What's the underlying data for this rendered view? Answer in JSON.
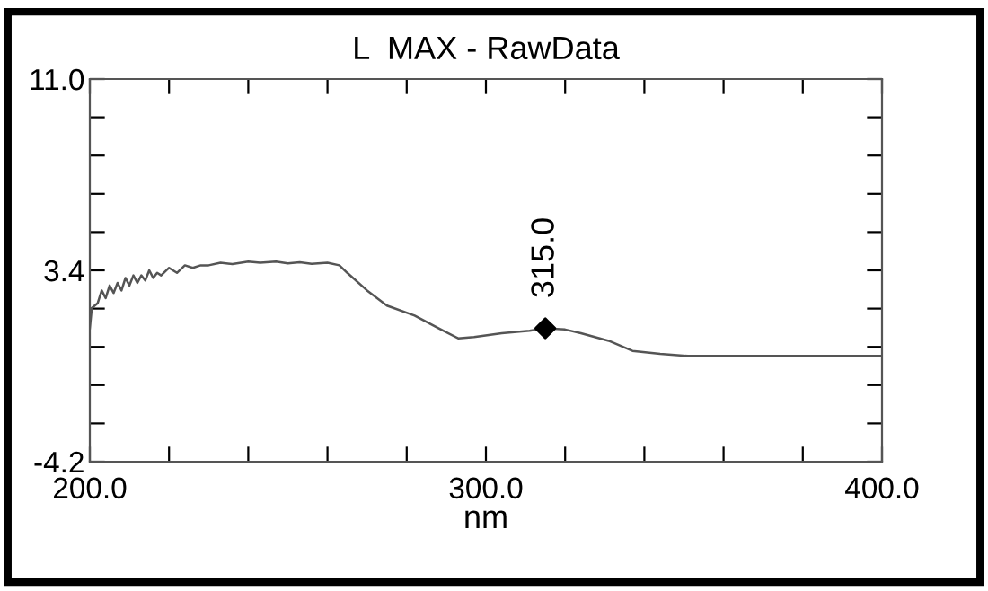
{
  "chart_data": {
    "type": "line",
    "title": "L  MAX - RawData",
    "xlabel": "nm",
    "series": [
      {
        "color": "#555555",
        "marker": "none",
        "x": [
          200,
          200.5,
          202,
          203,
          204,
          205,
          206,
          207,
          208,
          209,
          210,
          211,
          212,
          213,
          214,
          215,
          216,
          217,
          218,
          220,
          222,
          224,
          226,
          228,
          230,
          233,
          236,
          240,
          243,
          247,
          250,
          253,
          256,
          260,
          263,
          265,
          270,
          275,
          282,
          288,
          293,
          297,
          304,
          311,
          315,
          320,
          324,
          331,
          337,
          344,
          351,
          360,
          380,
          400
        ],
        "values": [
          1.1,
          1.9,
          2.1,
          2.6,
          2.3,
          2.8,
          2.5,
          2.9,
          2.6,
          3.1,
          2.8,
          3.2,
          2.9,
          3.2,
          3.0,
          3.4,
          3.1,
          3.3,
          3.2,
          3.5,
          3.3,
          3.6,
          3.5,
          3.6,
          3.6,
          3.7,
          3.65,
          3.75,
          3.7,
          3.75,
          3.68,
          3.72,
          3.66,
          3.7,
          3.6,
          3.3,
          2.6,
          2.0,
          1.6,
          1.1,
          0.7,
          0.75,
          0.9,
          1.0,
          1.1,
          1.05,
          0.9,
          0.6,
          0.2,
          0.08,
          0.0,
          0.0,
          0.0,
          0.0
        ]
      },
      {
        "type": "scatter",
        "color": "#000000",
        "marker": "diamond",
        "x": [
          315
        ],
        "values": [
          1.1
        ]
      }
    ],
    "annotations": [
      {
        "text": "315.0",
        "x": 315,
        "y": 1.1
      }
    ],
    "xlim": [
      200,
      400
    ],
    "xticks": [
      {
        "value": 200,
        "label": "200.0"
      },
      {
        "value": 220,
        "label": null
      },
      {
        "value": 240,
        "label": null
      },
      {
        "value": 260,
        "label": null
      },
      {
        "value": 280,
        "label": null
      },
      {
        "value": 300,
        "label": "300.0"
      },
      {
        "value": 320,
        "label": null
      },
      {
        "value": 340,
        "label": null
      },
      {
        "value": 360,
        "label": null
      },
      {
        "value": 380,
        "label": null
      },
      {
        "value": 400,
        "label": "400.0"
      }
    ],
    "ylim": [
      -4.2,
      11.0
    ],
    "yticks": [
      {
        "value": -4.2,
        "label": "-4.2"
      },
      {
        "value": -2.68,
        "label": null
      },
      {
        "value": -1.16,
        "label": null
      },
      {
        "value": 0.36,
        "label": null
      },
      {
        "value": 1.88,
        "label": null
      },
      {
        "value": 3.4,
        "label": "3.4"
      },
      {
        "value": 4.92,
        "label": null
      },
      {
        "value": 6.44,
        "label": null
      },
      {
        "value": 7.96,
        "label": null
      },
      {
        "value": 9.48,
        "label": null
      },
      {
        "value": 11.0,
        "label": "11.0"
      }
    ],
    "grid": false,
    "legend": false
  }
}
